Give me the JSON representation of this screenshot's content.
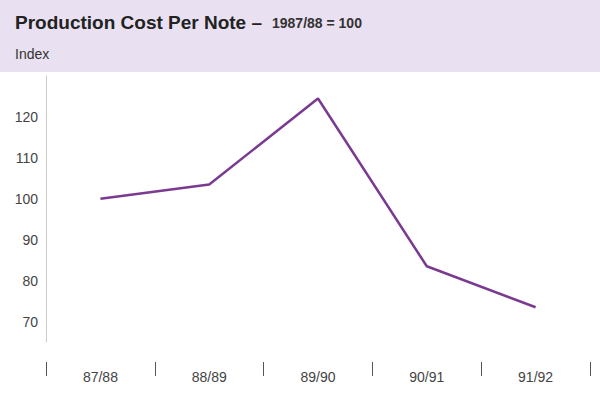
{
  "chart_data": {
    "type": "line",
    "title": "Production Cost Per Note –",
    "subtitle": "1987/88 = 100",
    "ylabel": "Index",
    "categories": [
      "87/88",
      "88/89",
      "89/90",
      "90/91",
      "91/92"
    ],
    "values": [
      100,
      103.5,
      124.5,
      83.5,
      73.5
    ],
    "color": "#7b3a91",
    "ylim": [
      65,
      130
    ],
    "yticks": [
      70,
      80,
      90,
      100,
      110,
      120
    ],
    "grid": false
  }
}
